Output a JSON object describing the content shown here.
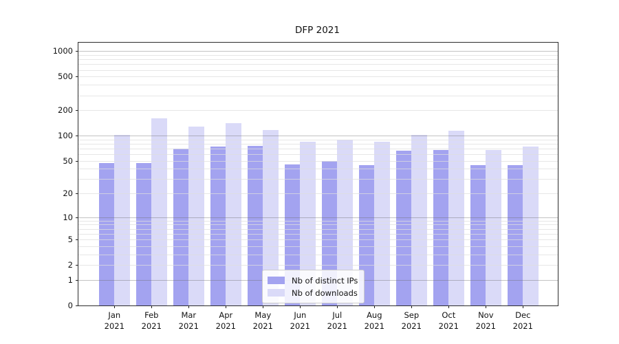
{
  "chart_data": {
    "type": "bar",
    "title": "DFP 2021",
    "categories": [
      "Jan 2021",
      "Feb 2021",
      "Mar 2021",
      "Apr 2021",
      "May 2021",
      "Jun 2021",
      "Jul 2021",
      "Aug 2021",
      "Sep 2021",
      "Oct 2021",
      "Nov 2021",
      "Dec 2021"
    ],
    "series": [
      {
        "name": "Nb of distinct IPs",
        "color": "#a3a3f0",
        "values": [
          47,
          47,
          70,
          74,
          76,
          45,
          50,
          44,
          66,
          67,
          44,
          44
        ]
      },
      {
        "name": "Nb of downloads",
        "color": "#dadaf8",
        "values": [
          103,
          162,
          129,
          140,
          116,
          84,
          90,
          84,
          102,
          115,
          68,
          74
        ]
      }
    ],
    "xlabel": "",
    "ylabel": "",
    "y_ticks": [
      0,
      1,
      2,
      5,
      10,
      20,
      50,
      100,
      200,
      500,
      1000
    ],
    "yscale": "log10(value+1)",
    "ylim": [
      0,
      1260
    ],
    "grid": true,
    "grid_major_at": [
      1,
      10,
      100,
      1000
    ],
    "legend_position": "lower center"
  },
  "colors": {
    "background": "#ffffff",
    "spine": "#2b2b2b",
    "major_grid": "#b7b7b7",
    "minor_grid": "#e9e9e9",
    "text": "#111111"
  }
}
